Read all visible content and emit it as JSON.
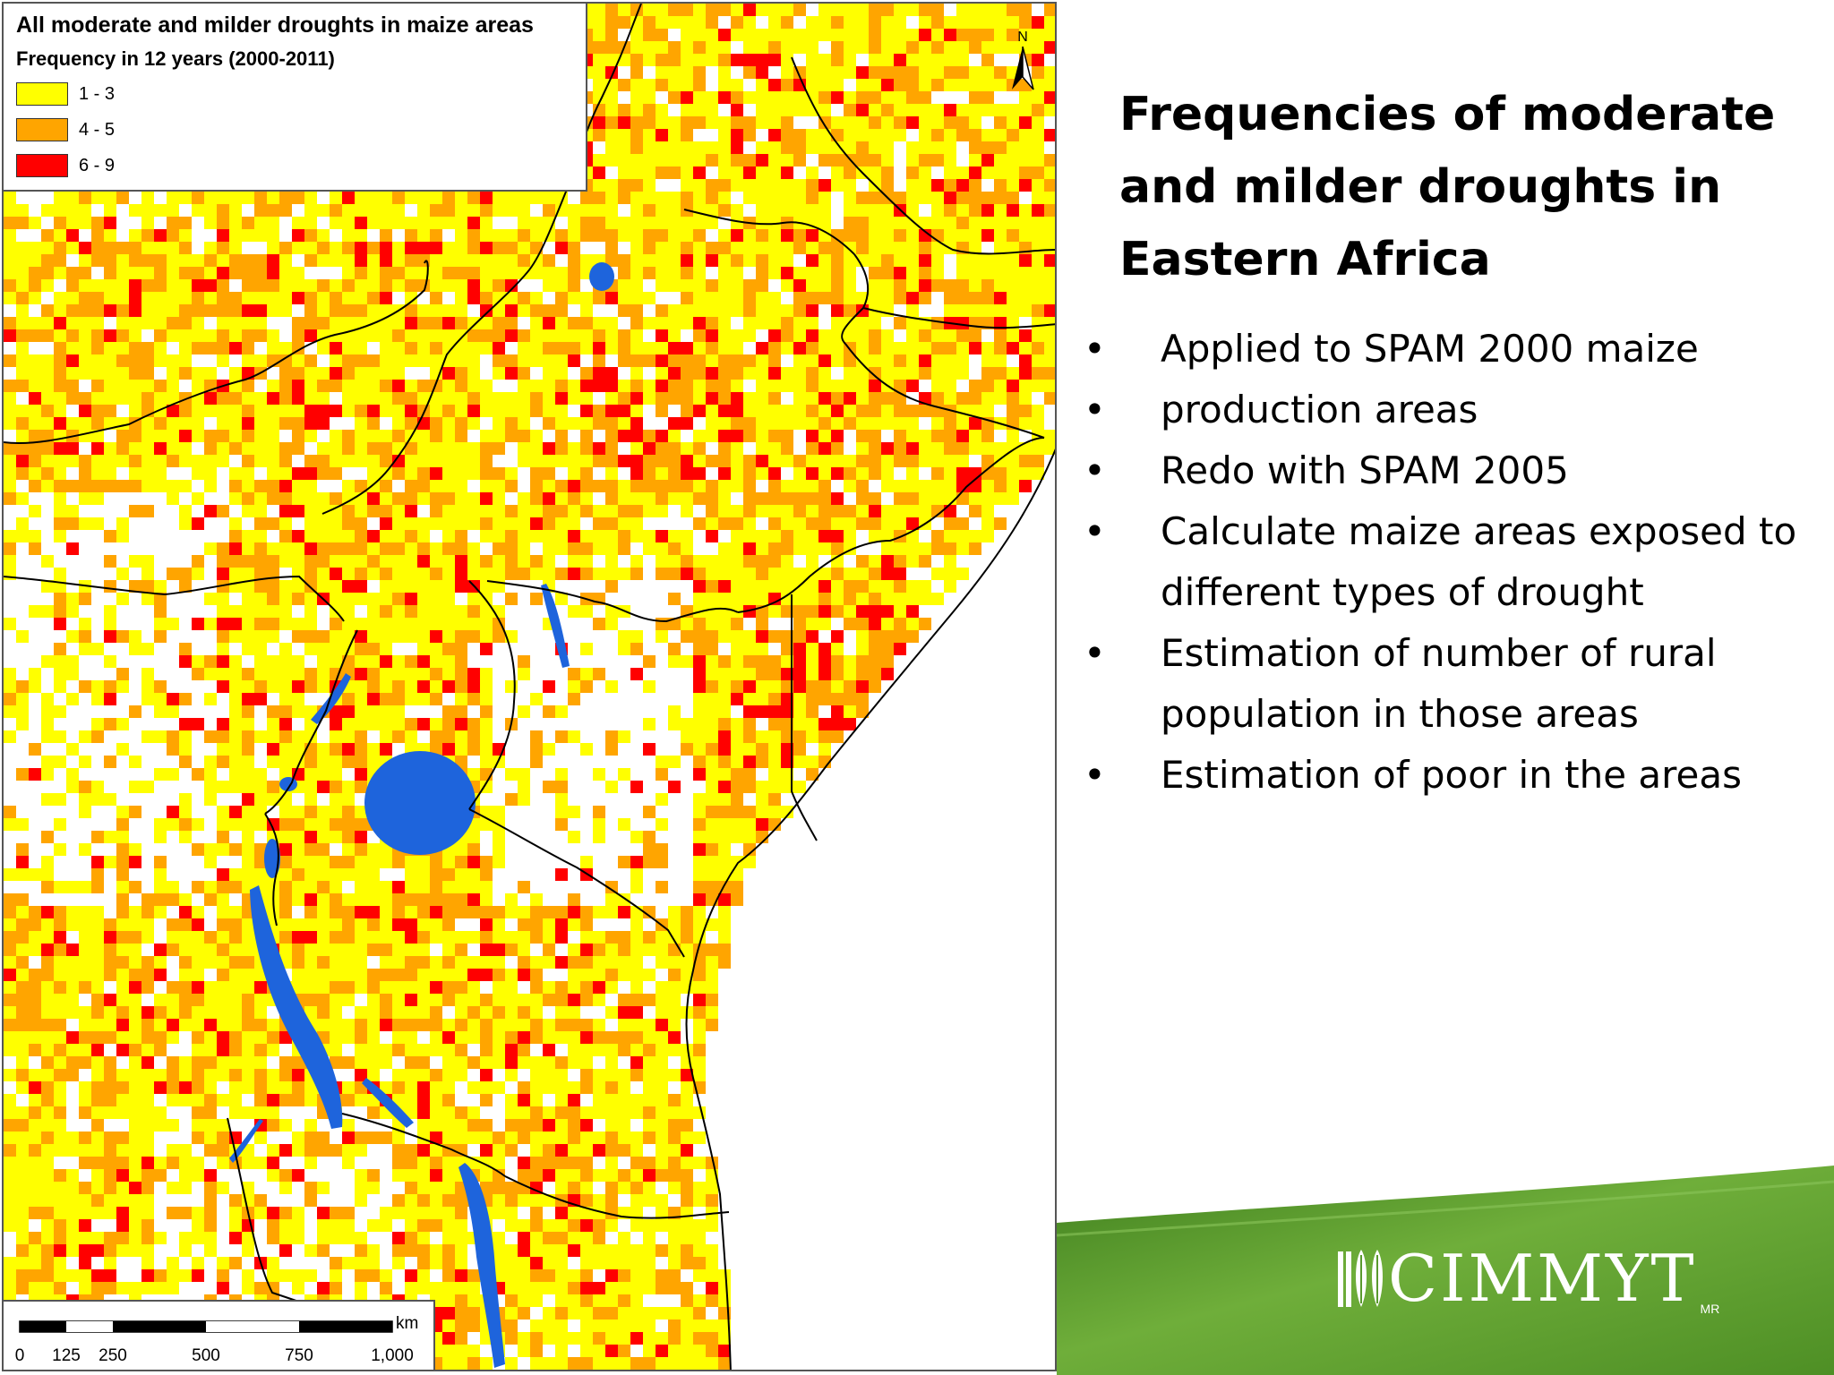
{
  "map": {
    "legend": {
      "title": "All moderate and milder droughts in maize areas",
      "subtitle": "Frequency in 12 years (2000-2011)",
      "classes": [
        {
          "label": "1 - 3",
          "color": "#FFFF00"
        },
        {
          "label": "4 - 5",
          "color": "#FFA500"
        },
        {
          "label": "6 - 9",
          "color": "#FF0000"
        }
      ]
    },
    "north_label": "N",
    "scale_bar": {
      "unit": "km",
      "ticks": [
        "0",
        "125",
        "250",
        "500",
        "750",
        "1,000"
      ]
    },
    "colors": {
      "lakes": "#1E64DC",
      "borders": "#000000",
      "no_data": "#FFFFFF"
    }
  },
  "slide": {
    "title_lines": [
      "Frequencies of moderate",
      "and milder droughts in",
      "Eastern Africa"
    ],
    "bullets": [
      "Applied to SPAM 2000 maize",
      "production areas",
      "Redo with SPAM 2005",
      "Calculate maize areas exposed to different types of drought",
      "Estimation of number of rural population in those areas",
      "Estimation of poor in the areas"
    ],
    "bullet_glyph": "•"
  },
  "footer": {
    "logo_text": "CIMMYT",
    "logo_mark": "MR",
    "logo_icon": "wheat-maize-icon",
    "banner_color": "#5A9A2E"
  }
}
